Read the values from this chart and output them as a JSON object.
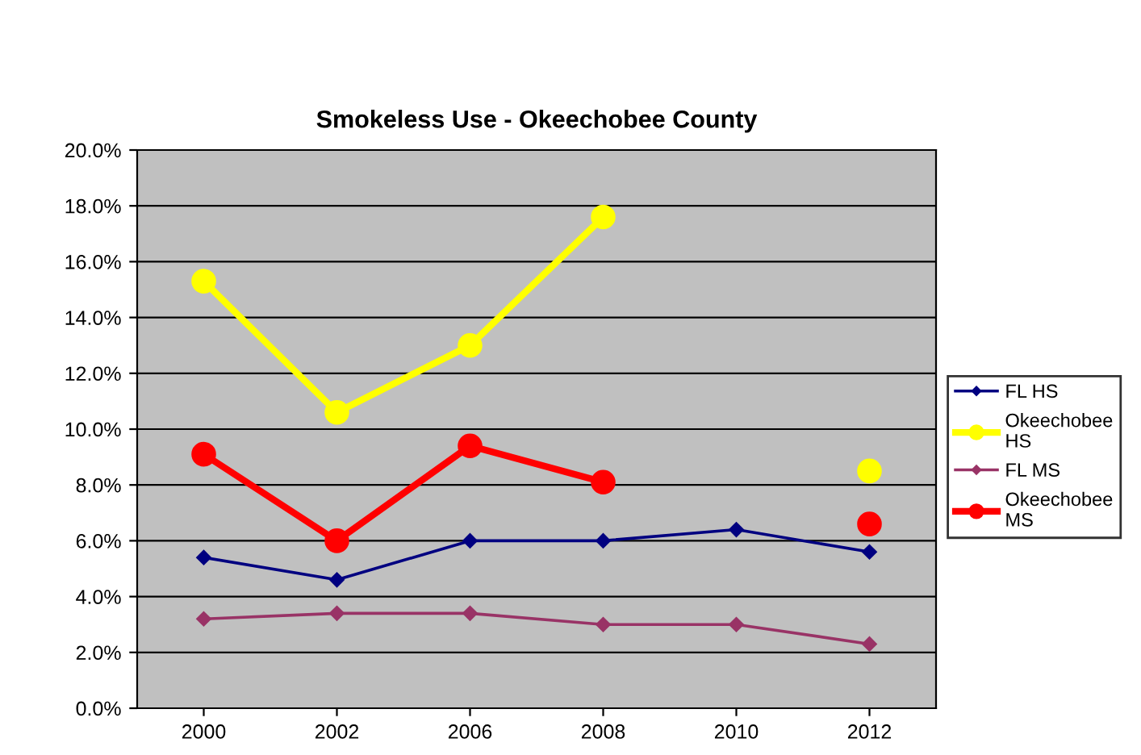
{
  "chart_data": {
    "type": "line",
    "title": "Smokeless Use - Okeechobee County",
    "categories": [
      "2000",
      "2002",
      "2006",
      "2008",
      "2010",
      "2012"
    ],
    "series": [
      {
        "name": "FL HS",
        "color": "#000080",
        "marker": "diamond",
        "values": [
          5.4,
          4.6,
          6.0,
          6.0,
          6.4,
          5.6
        ]
      },
      {
        "name": "Okeechobee HS",
        "color": "#ffff00",
        "marker": "circle",
        "values": [
          15.3,
          10.6,
          13.0,
          17.6,
          null,
          8.5
        ]
      },
      {
        "name": "FL MS",
        "color": "#993366",
        "marker": "diamond",
        "values": [
          3.2,
          3.4,
          3.4,
          3.0,
          3.0,
          2.3
        ]
      },
      {
        "name": "Okeechobee MS",
        "color": "#ff0000",
        "marker": "circle",
        "values": [
          9.1,
          6.0,
          9.4,
          8.1,
          null,
          6.6
        ]
      }
    ],
    "ylim": [
      0,
      20
    ],
    "yticks": [
      {
        "value": 0,
        "label": "0.0%"
      },
      {
        "value": 2,
        "label": "2.0%"
      },
      {
        "value": 4,
        "label": "4.0%"
      },
      {
        "value": 6,
        "label": "6.0%"
      },
      {
        "value": 8,
        "label": "8.0%"
      },
      {
        "value": 10,
        "label": "10.0%"
      },
      {
        "value": 12,
        "label": "12.0%"
      },
      {
        "value": 14,
        "label": "14.0%"
      },
      {
        "value": 16,
        "label": "16.0%"
      },
      {
        "value": 18,
        "label": "18.0%"
      },
      {
        "value": 20,
        "label": "20.0%"
      }
    ],
    "grid": "y",
    "legend": "right"
  }
}
